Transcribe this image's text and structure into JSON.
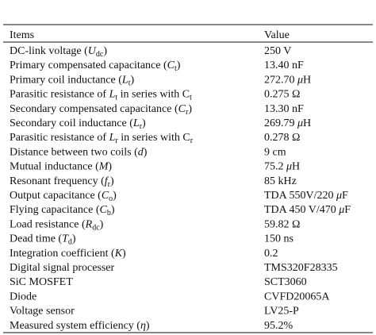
{
  "table": {
    "header": [
      "Items",
      "Value"
    ],
    "rows": [
      [
        [
          "DC-link voltage (",
          {
            "t": "U",
            "i": true
          },
          {
            "t": "dc",
            "sub": true
          },
          ")"
        ],
        [
          "250 V"
        ]
      ],
      [
        [
          "Primary compensated capacitance (",
          {
            "t": "C",
            "i": true
          },
          {
            "t": "t",
            "sub": true
          },
          ")"
        ],
        [
          "13.40 nF"
        ]
      ],
      [
        [
          "Primary coil inductance (",
          {
            "t": "L",
            "i": true
          },
          {
            "t": "t",
            "sub": true
          },
          ")"
        ],
        [
          "272.70 ",
          {
            "t": "μ",
            "i": true
          },
          "H"
        ]
      ],
      [
        [
          "Parasitic resistance of ",
          {
            "t": "L",
            "i": true
          },
          {
            "t": "t",
            "sub": true
          },
          " in series with C",
          {
            "t": "t",
            "sub": true
          }
        ],
        [
          "0.275 Ω"
        ]
      ],
      [
        [
          "Secondary compensated capacitance (",
          {
            "t": "C",
            "i": true
          },
          {
            "t": "r",
            "sub": true
          },
          ")"
        ],
        [
          "13.30 nF"
        ]
      ],
      [
        [
          "Secondary coil inductance (",
          {
            "t": "L",
            "i": true
          },
          {
            "t": "r",
            "sub": true
          },
          ")"
        ],
        [
          "269.79 ",
          {
            "t": "μ",
            "i": true
          },
          "H"
        ]
      ],
      [
        [
          "Parasitic resistance of ",
          {
            "t": "L",
            "i": true
          },
          {
            "t": "r",
            "sub": true
          },
          " in series with C",
          {
            "t": "r",
            "sub": true
          }
        ],
        [
          "0.278 Ω"
        ]
      ],
      [
        [
          "Distance between two coils (",
          {
            "t": "d",
            "i": true
          },
          ")"
        ],
        [
          "9 cm"
        ]
      ],
      [
        [
          "Mutual inductance (",
          {
            "t": "M",
            "i": true
          },
          ")"
        ],
        [
          "75.2 ",
          {
            "t": "μ",
            "i": true
          },
          "H"
        ]
      ],
      [
        [
          "Resonant frequency (",
          {
            "t": "f",
            "i": true
          },
          {
            "t": "r",
            "sub": true
          },
          ")"
        ],
        [
          "85 kHz"
        ]
      ],
      [
        [
          "Output capacitance (",
          {
            "t": "C",
            "i": true
          },
          {
            "t": "o",
            "sub": true
          },
          ")"
        ],
        [
          "TDA 550V/220 ",
          {
            "t": "μ",
            "i": true
          },
          "F"
        ]
      ],
      [
        [
          "Flying capacitance (",
          {
            "t": "C",
            "i": true
          },
          {
            "t": "b",
            "sub": true
          },
          ")"
        ],
        [
          "TDA 450 V/470 ",
          {
            "t": "μ",
            "i": true
          },
          "F"
        ]
      ],
      [
        [
          "Load resistance (",
          {
            "t": "R",
            "i": true
          },
          {
            "t": "dc",
            "sub": true
          },
          ")"
        ],
        [
          "59.82 Ω"
        ]
      ],
      [
        [
          "Dead time (",
          {
            "t": "T",
            "i": true
          },
          {
            "t": "d",
            "sub": true
          },
          ")"
        ],
        [
          "150 ns"
        ]
      ],
      [
        [
          "Integration coefficient (",
          {
            "t": "K",
            "i": true
          },
          ")"
        ],
        [
          "0.2"
        ]
      ],
      [
        [
          "Digital signal processer"
        ],
        [
          "TMS320F28335"
        ]
      ],
      [
        [
          "SiC MOSFET"
        ],
        [
          "SCT3060"
        ]
      ],
      [
        [
          "Diode"
        ],
        [
          "CVFD20065A"
        ]
      ],
      [
        [
          "Voltage sensor"
        ],
        [
          "LV25-P"
        ]
      ],
      [
        [
          "Measured system efficiency (",
          {
            "t": "η",
            "i": true
          },
          ")"
        ],
        [
          "95.2%"
        ]
      ]
    ]
  }
}
